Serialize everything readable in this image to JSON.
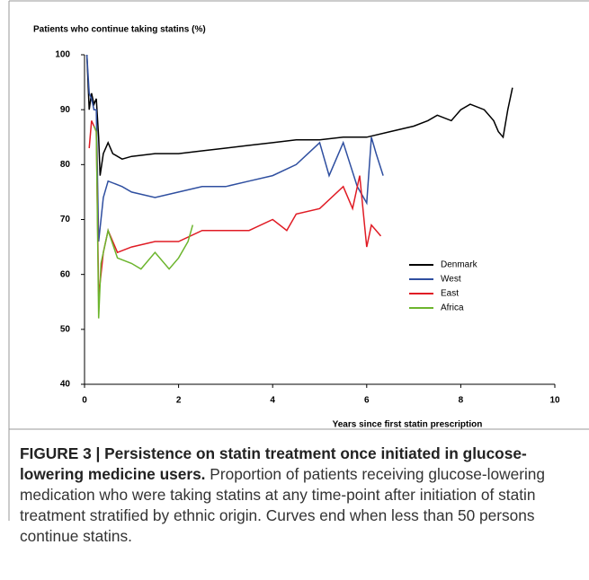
{
  "chart_data": {
    "type": "line",
    "y_label": "Patients who continue taking statins (%)",
    "x_label": "Years since first statin prescription",
    "xlim": [
      0,
      10
    ],
    "xticks": [
      0,
      2,
      4,
      6,
      8,
      10
    ],
    "ylim": [
      40,
      100
    ],
    "yticks": [
      40,
      50,
      60,
      70,
      80,
      90,
      100
    ],
    "grid": false,
    "legend": "right",
    "series": [
      {
        "name": "Denmark",
        "color": "#000000",
        "x": [
          0.05,
          0.1,
          0.15,
          0.2,
          0.25,
          0.3,
          0.33,
          0.4,
          0.5,
          0.6,
          0.8,
          1.0,
          1.5,
          2.0,
          2.5,
          3.0,
          3.5,
          4.0,
          4.5,
          5.0,
          5.5,
          6.0,
          6.5,
          7.0,
          7.3,
          7.5,
          7.8,
          8.0,
          8.2,
          8.5,
          8.7,
          8.8,
          8.9,
          9.0,
          9.1
        ],
        "values": [
          100,
          90,
          93,
          91,
          92,
          85,
          78,
          82,
          84,
          82,
          81,
          81.5,
          82,
          82,
          82.5,
          83,
          83.5,
          84,
          84.5,
          84.5,
          85,
          85,
          86,
          87,
          88,
          89,
          88,
          90,
          91,
          90,
          88,
          86,
          85,
          90,
          94
        ]
      },
      {
        "name": "West",
        "color": "#2f4fa0",
        "x": [
          0.05,
          0.1,
          0.15,
          0.2,
          0.25,
          0.3,
          0.4,
          0.5,
          0.8,
          1.0,
          1.5,
          2.0,
          2.5,
          3.0,
          3.5,
          4.0,
          4.5,
          5.0,
          5.2,
          5.5,
          5.8,
          6.0,
          6.1,
          6.2,
          6.35
        ],
        "values": [
          100,
          93,
          92,
          90,
          90,
          66,
          74,
          77,
          76,
          75,
          74,
          75,
          76,
          76,
          77,
          78,
          80,
          84,
          78,
          84,
          76,
          73,
          85,
          82,
          78
        ]
      },
      {
        "name": "East",
        "color": "#e01b24",
        "x": [
          0.1,
          0.15,
          0.2,
          0.25,
          0.3,
          0.4,
          0.5,
          0.7,
          1.0,
          1.5,
          2.0,
          2.5,
          3.0,
          3.5,
          4.0,
          4.3,
          4.5,
          5.0,
          5.5,
          5.7,
          5.85,
          6.0,
          6.1,
          6.3
        ],
        "values": [
          83,
          88,
          87,
          86,
          56,
          64,
          68,
          64,
          65,
          66,
          66,
          68,
          68,
          68,
          70,
          68,
          71,
          72,
          76,
          72,
          78,
          65,
          69,
          67
        ]
      },
      {
        "name": "Africa",
        "color": "#6cb52d",
        "x": [
          0.2,
          0.25,
          0.3,
          0.35,
          0.5,
          0.7,
          1.0,
          1.2,
          1.5,
          1.8,
          2.0,
          2.2,
          2.3
        ],
        "values": [
          87,
          86,
          52,
          62,
          68,
          63,
          62,
          61,
          64,
          61,
          63,
          66,
          69
        ]
      }
    ]
  },
  "caption": {
    "label": "FIGURE 3 | Persistence on statin treatment once initiated in glucose-lowering medicine users.",
    "text": "Proportion of patients receiving glucose-lowering medication who were taking statins at any time-point after initiation of statin treatment stratified by ethnic origin. Curves end when less than 50 persons continue statins."
  }
}
